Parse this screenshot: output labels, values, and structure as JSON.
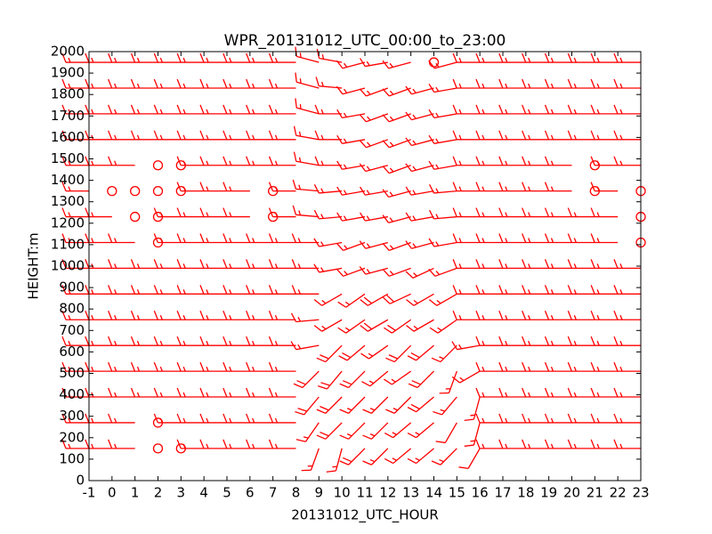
{
  "chart_data": {
    "type": "barbs",
    "title": "WPR_20131012_UTC_00:00_to_23:00",
    "x_label": "20131012_UTC_HOUR",
    "y_label": "HEIGHT:m",
    "color": "#ff0000",
    "xlim": [
      -1,
      23
    ],
    "ylim": [
      0,
      2000
    ],
    "xticks": [
      -1,
      0,
      1,
      2,
      3,
      4,
      5,
      6,
      7,
      8,
      9,
      10,
      11,
      12,
      13,
      14,
      15,
      16,
      17,
      18,
      19,
      20,
      21,
      22,
      23
    ],
    "yticks": [
      0,
      100,
      200,
      300,
      400,
      500,
      600,
      700,
      800,
      900,
      1000,
      1100,
      1200,
      1300,
      1400,
      1500,
      1600,
      1700,
      1800,
      1900,
      2000
    ],
    "x": [
      -1,
      0,
      1,
      2,
      3,
      4,
      5,
      6,
      7,
      8,
      9,
      10,
      11,
      12,
      13,
      14,
      15,
      16,
      17,
      18,
      19,
      20,
      21,
      22,
      23
    ],
    "rows": [
      {
        "height": 150,
        "direction": [
          270,
          270,
          270,
          270,
          270,
          270,
          270,
          270,
          270,
          270,
          200,
          195,
          225,
          225,
          230,
          230,
          225,
          210,
          270,
          270,
          270,
          270,
          270,
          270,
          270
        ],
        "speed": [
          15,
          15,
          15,
          0,
          0,
          15,
          15,
          15,
          15,
          15,
          15,
          15,
          20,
          15,
          15,
          15,
          15,
          10,
          15,
          15,
          15,
          15,
          15,
          15,
          15
        ]
      },
      {
        "height": 270,
        "direction": [
          270,
          270,
          270,
          270,
          270,
          270,
          270,
          270,
          270,
          270,
          215,
          225,
          225,
          225,
          230,
          230,
          210,
          195,
          270,
          270,
          270,
          270,
          270,
          270,
          270
        ],
        "speed": [
          15,
          15,
          15,
          0,
          15,
          15,
          15,
          15,
          15,
          15,
          15,
          20,
          15,
          15,
          15,
          15,
          10,
          15,
          15,
          15,
          15,
          15,
          15,
          15,
          15
        ]
      },
      {
        "height": 390,
        "direction": [
          270,
          270,
          270,
          270,
          270,
          270,
          270,
          270,
          270,
          270,
          220,
          225,
          225,
          225,
          225,
          230,
          220,
          195,
          270,
          270,
          270,
          270,
          270,
          270,
          270
        ],
        "speed": [
          15,
          15,
          15,
          15,
          15,
          15,
          15,
          15,
          15,
          15,
          20,
          20,
          15,
          15,
          15,
          20,
          15,
          15,
          15,
          15,
          15,
          15,
          15,
          15,
          15
        ]
      },
      {
        "height": 510,
        "direction": [
          270,
          270,
          270,
          270,
          270,
          270,
          270,
          270,
          270,
          270,
          225,
          220,
          225,
          230,
          235,
          225,
          200,
          240,
          270,
          270,
          270,
          270,
          270,
          270,
          270
        ],
        "speed": [
          15,
          15,
          15,
          15,
          15,
          15,
          15,
          15,
          15,
          15,
          20,
          20,
          20,
          15,
          15,
          20,
          15,
          15,
          15,
          15,
          15,
          15,
          15,
          15,
          15
        ]
      },
      {
        "height": 630,
        "direction": [
          270,
          270,
          270,
          270,
          270,
          270,
          270,
          270,
          270,
          270,
          260,
          225,
          230,
          235,
          225,
          230,
          225,
          260,
          270,
          270,
          270,
          270,
          270,
          270,
          270
        ],
        "speed": [
          15,
          15,
          15,
          15,
          15,
          15,
          15,
          15,
          15,
          15,
          15,
          20,
          20,
          15,
          20,
          20,
          15,
          15,
          15,
          15,
          15,
          15,
          15,
          15,
          15
        ]
      },
      {
        "height": 750,
        "direction": [
          270,
          270,
          270,
          270,
          270,
          270,
          270,
          270,
          270,
          270,
          265,
          240,
          235,
          240,
          235,
          240,
          235,
          270,
          270,
          270,
          270,
          270,
          270,
          270,
          270
        ],
        "speed": [
          15,
          15,
          15,
          15,
          15,
          15,
          15,
          15,
          15,
          15,
          15,
          15,
          15,
          20,
          20,
          15,
          15,
          15,
          15,
          15,
          15,
          15,
          15,
          15,
          15
        ]
      },
      {
        "height": 870,
        "direction": [
          270,
          270,
          270,
          270,
          270,
          270,
          270,
          270,
          270,
          270,
          270,
          240,
          235,
          240,
          245,
          240,
          240,
          270,
          270,
          270,
          270,
          270,
          270,
          270,
          270
        ],
        "speed": [
          15,
          15,
          15,
          15,
          15,
          15,
          15,
          15,
          15,
          15,
          15,
          15,
          15,
          20,
          20,
          15,
          15,
          15,
          15,
          15,
          15,
          15,
          15,
          15,
          15
        ]
      },
      {
        "height": 990,
        "direction": [
          270,
          270,
          270,
          270,
          270,
          270,
          270,
          270,
          270,
          270,
          270,
          260,
          250,
          255,
          250,
          245,
          250,
          270,
          270,
          270,
          270,
          270,
          270,
          270,
          270
        ],
        "speed": [
          15,
          15,
          15,
          15,
          15,
          15,
          15,
          15,
          15,
          15,
          15,
          15,
          15,
          15,
          15,
          15,
          15,
          15,
          15,
          15,
          15,
          15,
          15,
          15,
          15
        ]
      },
      {
        "height": 1110,
        "direction": [
          270,
          270,
          270,
          270,
          270,
          270,
          270,
          270,
          270,
          270,
          270,
          260,
          250,
          255,
          250,
          255,
          260,
          270,
          270,
          270,
          270,
          270,
          270,
          270,
          270
        ],
        "speed": [
          15,
          15,
          15,
          0,
          15,
          15,
          15,
          15,
          15,
          15,
          15,
          15,
          15,
          15,
          15,
          15,
          15,
          15,
          15,
          15,
          15,
          15,
          15,
          15,
          0
        ]
      },
      {
        "height": 1230,
        "direction": [
          270,
          270,
          270,
          270,
          270,
          270,
          270,
          270,
          270,
          270,
          275,
          265,
          260,
          260,
          255,
          260,
          265,
          270,
          270,
          270,
          270,
          270,
          270,
          270,
          270
        ],
        "speed": [
          15,
          15,
          0,
          0,
          15,
          15,
          15,
          15,
          0,
          15,
          15,
          15,
          15,
          15,
          15,
          15,
          15,
          15,
          15,
          15,
          15,
          15,
          15,
          15,
          0
        ]
      },
      {
        "height": 1350,
        "direction": [
          270,
          270,
          270,
          270,
          270,
          270,
          270,
          270,
          270,
          270,
          275,
          265,
          260,
          260,
          255,
          260,
          265,
          270,
          270,
          270,
          270,
          270,
          270,
          270,
          270
        ],
        "speed": [
          15,
          0,
          0,
          0,
          0,
          15,
          15,
          15,
          0,
          15,
          15,
          15,
          15,
          15,
          15,
          15,
          15,
          15,
          15,
          15,
          15,
          15,
          0,
          15,
          0
        ]
      },
      {
        "height": 1470,
        "direction": [
          270,
          270,
          270,
          270,
          270,
          270,
          270,
          270,
          270,
          270,
          280,
          270,
          260,
          255,
          250,
          255,
          260,
          270,
          270,
          270,
          270,
          270,
          270,
          270,
          270
        ],
        "speed": [
          15,
          15,
          15,
          0,
          0,
          15,
          15,
          15,
          15,
          15,
          15,
          15,
          15,
          15,
          15,
          15,
          15,
          15,
          15,
          15,
          15,
          15,
          0,
          15,
          15
        ]
      },
      {
        "height": 1590,
        "direction": [
          270,
          270,
          270,
          270,
          270,
          270,
          270,
          270,
          270,
          270,
          280,
          270,
          260,
          250,
          250,
          255,
          260,
          270,
          270,
          270,
          270,
          270,
          270,
          270,
          270
        ],
        "speed": [
          15,
          15,
          15,
          15,
          15,
          15,
          15,
          15,
          15,
          15,
          15,
          15,
          15,
          15,
          15,
          15,
          15,
          15,
          15,
          15,
          15,
          15,
          15,
          15,
          15
        ]
      },
      {
        "height": 1710,
        "direction": [
          270,
          270,
          270,
          270,
          270,
          270,
          270,
          270,
          270,
          270,
          285,
          270,
          260,
          250,
          250,
          255,
          260,
          270,
          270,
          270,
          270,
          270,
          270,
          270,
          270
        ],
        "speed": [
          15,
          15,
          15,
          15,
          15,
          15,
          15,
          15,
          15,
          15,
          15,
          15,
          15,
          15,
          15,
          15,
          15,
          15,
          15,
          15,
          15,
          15,
          15,
          15,
          15
        ]
      },
      {
        "height": 1830,
        "direction": [
          270,
          270,
          270,
          270,
          270,
          270,
          270,
          270,
          270,
          270,
          285,
          275,
          255,
          250,
          250,
          255,
          260,
          270,
          270,
          270,
          270,
          270,
          270,
          270,
          270
        ],
        "speed": [
          15,
          15,
          15,
          15,
          15,
          15,
          15,
          15,
          15,
          15,
          15,
          15,
          15,
          15,
          15,
          15,
          15,
          15,
          15,
          15,
          15,
          15,
          15,
          15,
          15
        ]
      },
      {
        "height": 1950,
        "direction": [
          270,
          270,
          270,
          270,
          270,
          270,
          270,
          270,
          270,
          270,
          285,
          280,
          255,
          260,
          255,
          270,
          255,
          270,
          270,
          270,
          270,
          270,
          270,
          270,
          270
        ],
        "speed": [
          15,
          15,
          15,
          15,
          15,
          15,
          15,
          15,
          15,
          15,
          15,
          15,
          15,
          15,
          15,
          0,
          15,
          15,
          15,
          15,
          15,
          15,
          15,
          15,
          15
        ]
      }
    ]
  }
}
